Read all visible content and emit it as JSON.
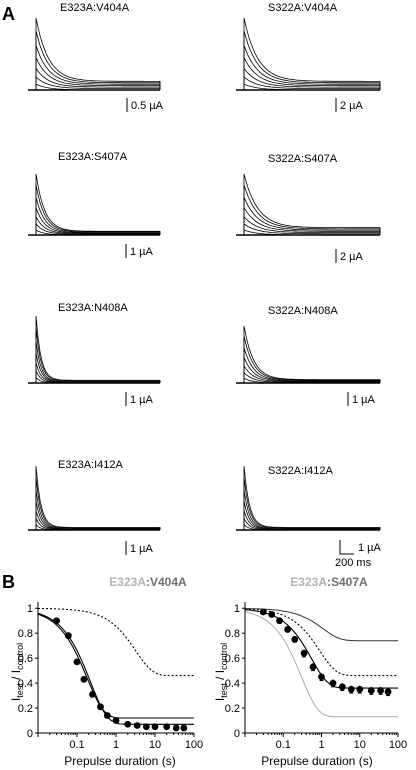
{
  "panels": {
    "a_letter": "A",
    "b_letter": "B"
  },
  "traces": [
    {
      "label": "E323A:V404A",
      "scale": "0.5 µA",
      "decay": "slow"
    },
    {
      "label": "S322A:V404A",
      "scale": "2 µA",
      "decay": "slow"
    },
    {
      "label": "E323A:S407A",
      "scale": "1 µA",
      "decay": "medium"
    },
    {
      "label": "S322A:S407A",
      "scale": "2 µA",
      "decay": "slow"
    },
    {
      "label": "E323A:N408A",
      "scale": "1 µA",
      "decay": "fast"
    },
    {
      "label": "S322A:N408A",
      "scale": "1 µA",
      "decay": "medium"
    },
    {
      "label": "E323A:I412A",
      "scale": "1 µA",
      "decay": "fast"
    },
    {
      "label": "S322A:I412A",
      "scale": "1 µA",
      "decay": "fast"
    }
  ],
  "time_scale": "200 ms",
  "chart_data": [
    {
      "type": "scatter",
      "title_prefix": "E323A",
      "title_suffix": ":V404A",
      "xlabel": "Prepulse duration (s)",
      "ylabel_main": "I",
      "ylabel_sub1": "test",
      "ylabel_sep": " / I",
      "ylabel_sub2": "control",
      "xscale": "log",
      "xlim": [
        0.01,
        100
      ],
      "ylim": [
        0,
        1.05
      ],
      "xticks": [
        0.1,
        1,
        10,
        100
      ],
      "xtick_labels": [
        "0.1",
        "1",
        "10",
        "100"
      ],
      "yticks": [
        0,
        0.2,
        0.4,
        0.6,
        0.8,
        1
      ],
      "ytick_labels": [
        "0",
        "0.2",
        "0.4",
        "0.6",
        "0.8",
        "1"
      ],
      "points": {
        "x": [
          0.03,
          0.06,
          0.1,
          0.15,
          0.25,
          0.4,
          0.6,
          1,
          2,
          3.5,
          6,
          10,
          20,
          35,
          55
        ],
        "y": [
          0.9,
          0.78,
          0.57,
          0.43,
          0.31,
          0.21,
          0.14,
          0.1,
          0.07,
          0.06,
          0.05,
          0.05,
          0.05,
          0.04,
          0.04
        ]
      },
      "curves": [
        {
          "style": "solid-black",
          "tau": 0.22,
          "ss": 0.07
        },
        {
          "style": "solid-black",
          "tau": 0.18,
          "ss": 0.12
        },
        {
          "style": "dotted-black",
          "tau": 3.2,
          "ss": 0.46
        }
      ],
      "colors": {
        "title_prefix": "#b3b3b3",
        "title_suffix": "#6e6e6e",
        "gray_curve": "#aaaaaa"
      }
    },
    {
      "type": "scatter",
      "title_prefix": "E323A",
      "title_suffix": ":S407A",
      "xlabel": "Prepulse duration (s)",
      "ylabel_main": "I",
      "ylabel_sub1": "test",
      "ylabel_sep": " / I",
      "ylabel_sub2": "control",
      "xscale": "log",
      "xlim": [
        0.01,
        100
      ],
      "ylim": [
        0,
        1.05
      ],
      "xticks": [
        0.1,
        1,
        10,
        100
      ],
      "xtick_labels": [
        "0.1",
        "1",
        "10",
        "100"
      ],
      "yticks": [
        0,
        0.2,
        0.4,
        0.6,
        0.8,
        1
      ],
      "ytick_labels": [
        "0",
        "0.2",
        "0.4",
        "0.6",
        "0.8",
        "1"
      ],
      "points": {
        "x": [
          0.03,
          0.05,
          0.08,
          0.13,
          0.2,
          0.35,
          0.6,
          1,
          2,
          3.5,
          6,
          10,
          20,
          35,
          55
        ],
        "y": [
          0.97,
          0.95,
          0.9,
          0.83,
          0.75,
          0.64,
          0.53,
          0.45,
          0.4,
          0.37,
          0.35,
          0.35,
          0.34,
          0.34,
          0.33
        ],
        "err": [
          0.01,
          0.01,
          0.02,
          0.02,
          0.02,
          0.03,
          0.03,
          0.03,
          0.03,
          0.03,
          0.03,
          0.03,
          0.03,
          0.03,
          0.03
        ]
      },
      "curves": [
        {
          "style": "solid-black",
          "tau": 0.55,
          "ss": 0.36
        },
        {
          "style": "dotted-black",
          "tau": 0.9,
          "ss": 0.46
        },
        {
          "style": "solid-dark",
          "tau": 1.1,
          "ss": 0.74
        },
        {
          "style": "solid-gray",
          "tau": 0.3,
          "ss": 0.13
        }
      ],
      "colors": {
        "title_prefix": "#b3b3b3",
        "title_suffix": "#6e6e6e",
        "gray_curve": "#aaaaaa"
      }
    }
  ]
}
